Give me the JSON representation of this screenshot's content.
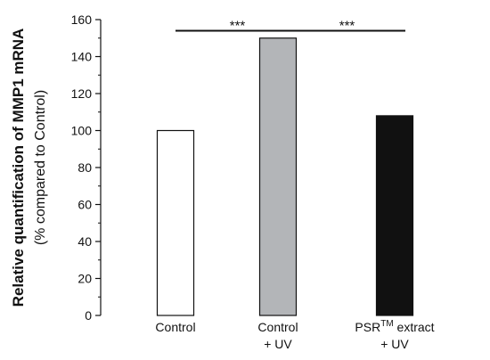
{
  "chart_data": {
    "type": "bar",
    "title": "",
    "ylabel": "Relative quantification of MMP1 mRNA",
    "ylabel_sub": "(% compared to Control)",
    "xlabel": "",
    "ylim": [
      0,
      160
    ],
    "yticks": [
      0,
      20,
      40,
      60,
      80,
      100,
      120,
      140,
      160
    ],
    "grid": false,
    "legend": "none",
    "categories": [
      {
        "lines": [
          "Control"
        ],
        "superscript": ""
      },
      {
        "lines": [
          "Control",
          "+ UV"
        ],
        "superscript": ""
      },
      {
        "lines": [
          "PSR extract",
          "+ UV"
        ],
        "superscript": "TM"
      }
    ],
    "values": [
      100,
      150,
      108
    ],
    "bar_fills": [
      "#ffffff",
      "#b3b5b8",
      "#111111"
    ],
    "significance": {
      "bar_value": 154,
      "from_category": 0,
      "to_category": 2,
      "labels": [
        {
          "text": "***",
          "between": [
            0,
            1
          ]
        },
        {
          "text": "***",
          "between": [
            1,
            2
          ]
        }
      ]
    }
  }
}
